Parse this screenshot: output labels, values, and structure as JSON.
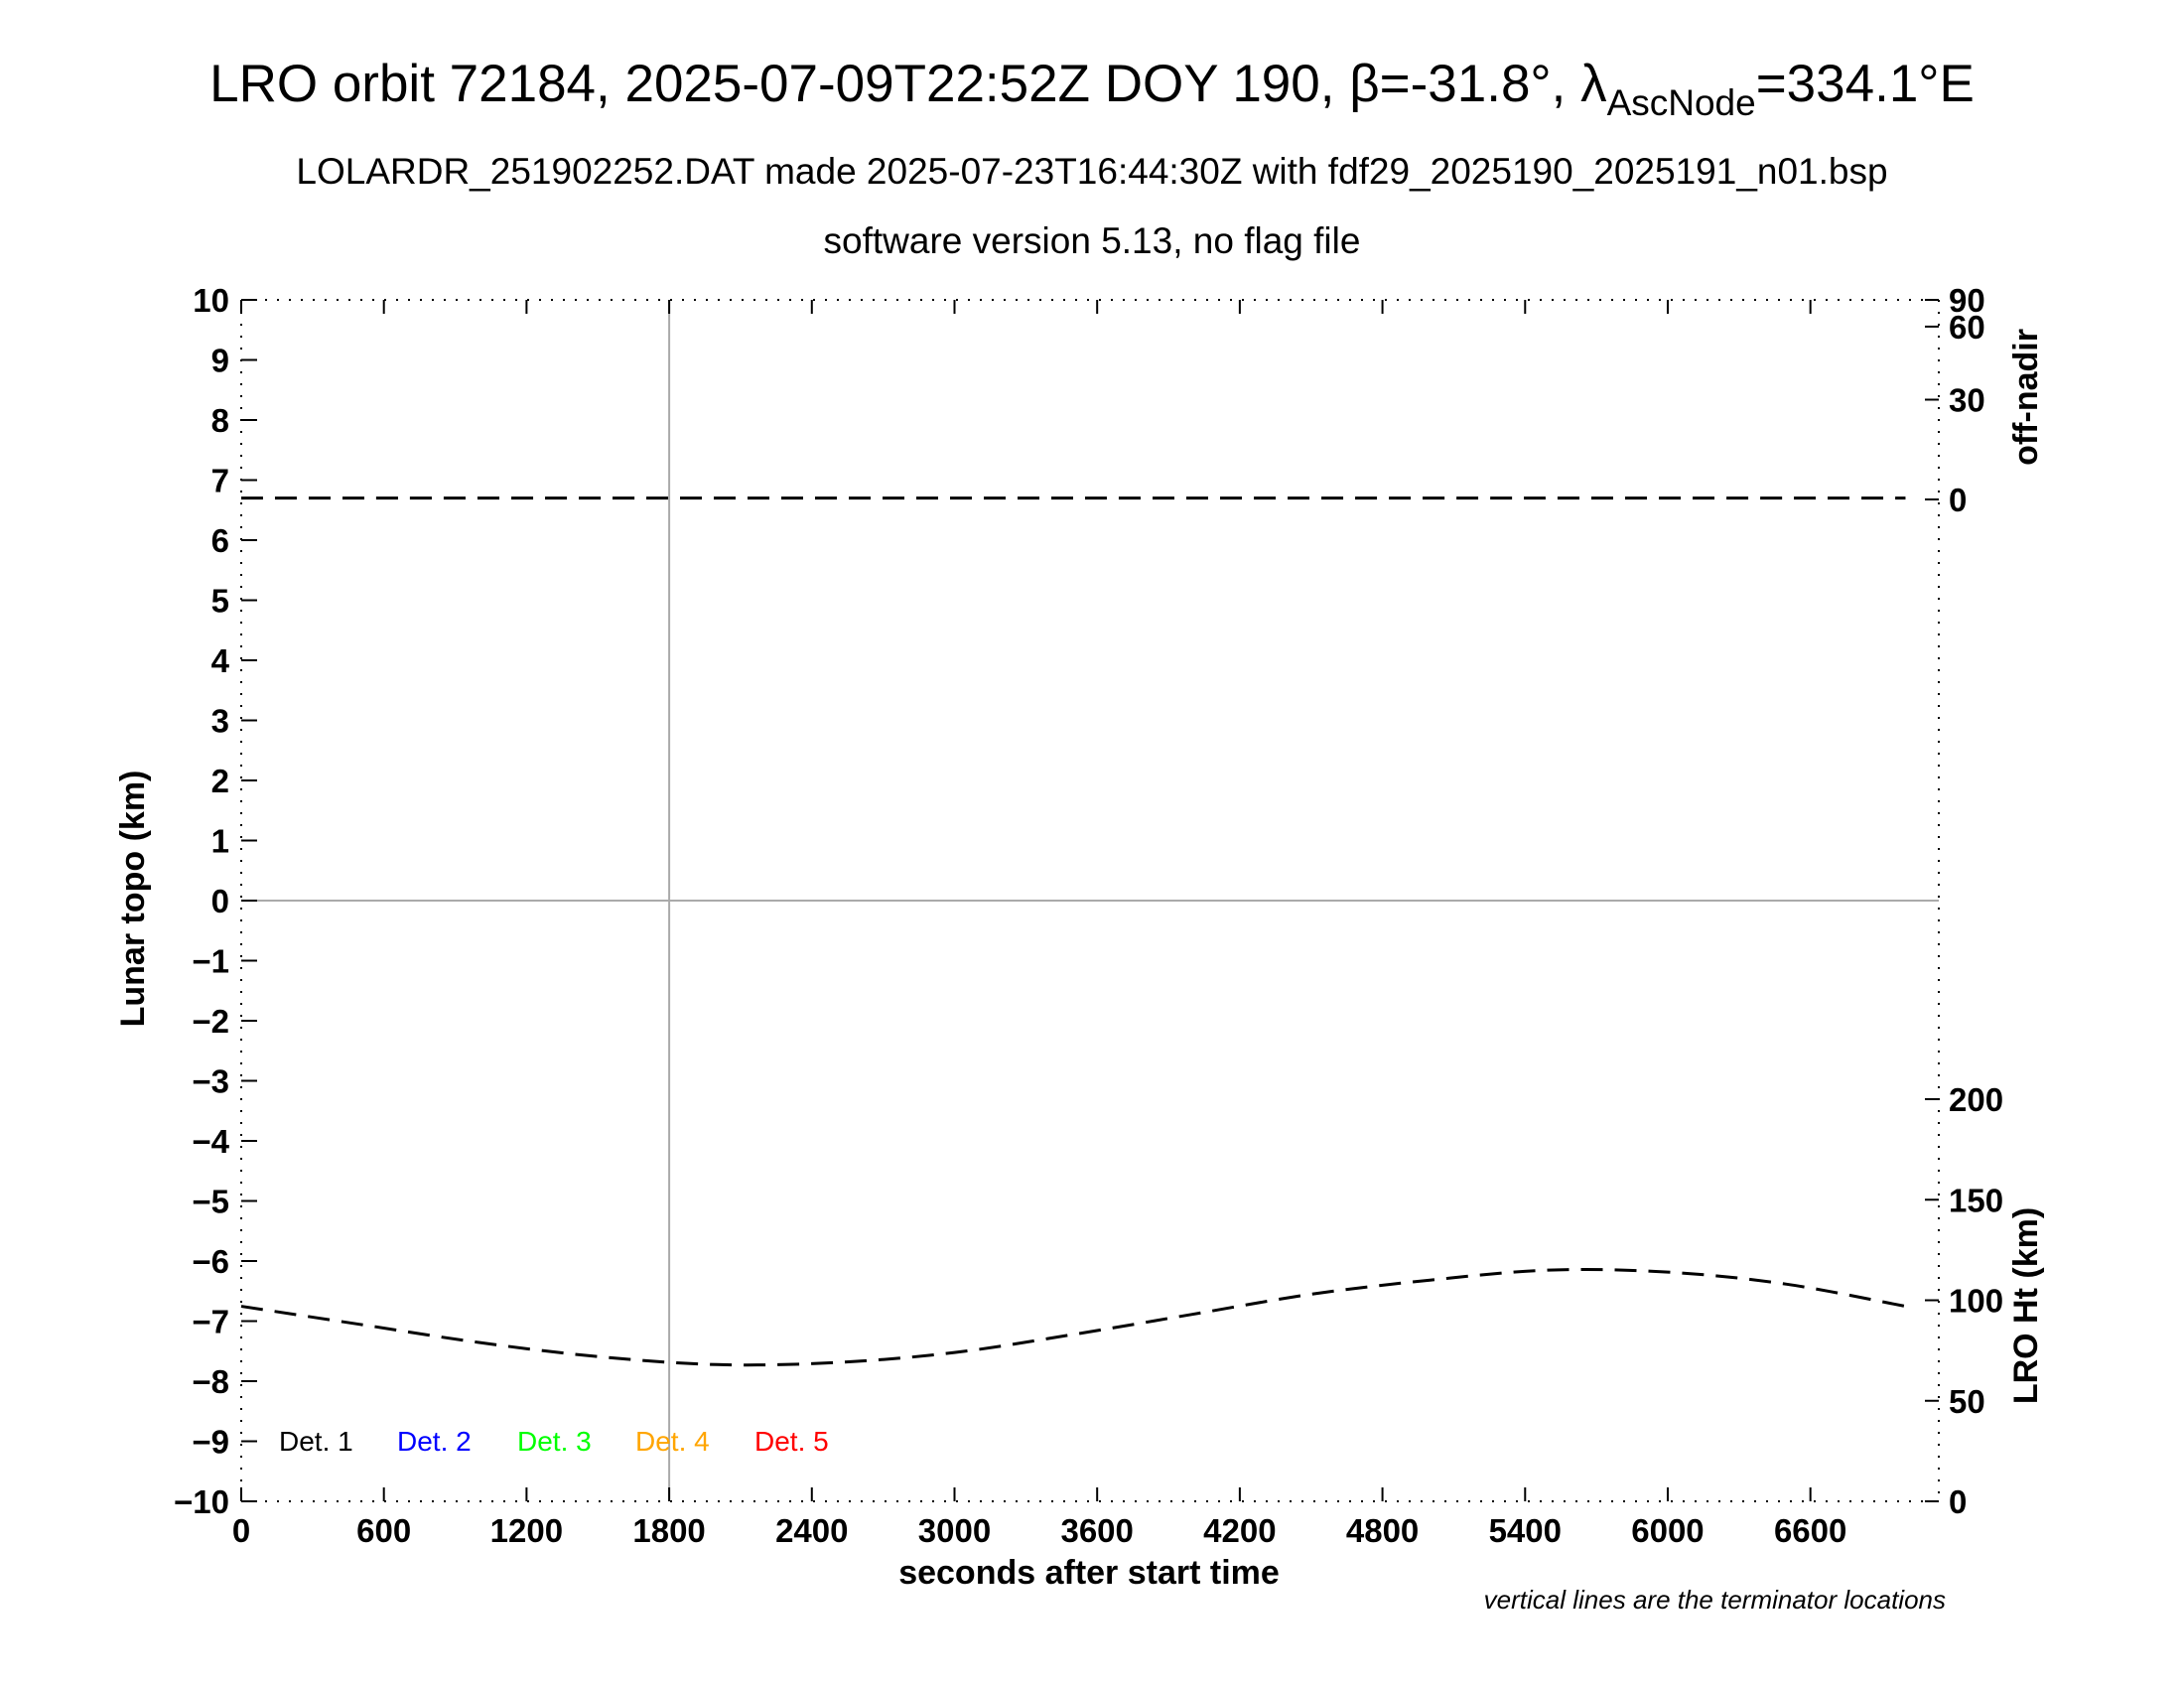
{
  "header": {
    "title_main": "LRO orbit 72184, 2025-07-09T22:52Z DOY 190, β=-31.8°, λ",
    "title_sub": "AscNode",
    "title_end": "=334.1°E",
    "subtitle1": "LOLARDR_251902252.DAT made 2025-07-23T16:44:30Z with fdf29_2025190_2025191_n01.bsp",
    "subtitle2": "software version 5.13, no flag file"
  },
  "note": "vertical lines are the terminator locations",
  "chart_data": {
    "type": "line",
    "xlabel": "seconds after start time",
    "ylabel_left": "Lunar topo (km)",
    "ylabel_right_top": "off-nadir",
    "ylabel_right_bottom": "LRO Ht (km)",
    "xlim": [
      0,
      7140
    ],
    "ylim_left": [
      -10,
      10
    ],
    "x_ticks": [
      0,
      600,
      1200,
      1800,
      2400,
      3000,
      3600,
      4200,
      4800,
      5400,
      6000,
      6600
    ],
    "y_ticks_left": [
      10,
      9,
      8,
      7,
      6,
      5,
      4,
      3,
      2,
      1,
      0,
      -1,
      -2,
      -3,
      -4,
      -5,
      -6,
      -7,
      -8,
      -9,
      -10
    ],
    "offnadir_ticks": [
      90,
      60,
      30,
      0
    ],
    "height_ticks": [
      200,
      150,
      100,
      50,
      0
    ],
    "terminator_x": [
      1800
    ],
    "legend": [
      {
        "label": "Det. 1",
        "color": "#000000"
      },
      {
        "label": "Det. 2",
        "color": "#0000ff"
      },
      {
        "label": "Det. 3",
        "color": "#00ff00"
      },
      {
        "label": "Det. 4",
        "color": "#ffa500"
      },
      {
        "label": "Det. 5",
        "color": "#ff0000"
      }
    ],
    "series": [
      {
        "axis": "off-nadir",
        "x": [
          0,
          1800,
          3600,
          5400,
          7000
        ],
        "values": [
          0.6,
          0.6,
          0.6,
          0.6,
          0.6
        ]
      },
      {
        "axis": "LRO Ht (km)",
        "x": [
          0,
          500,
          1000,
          1500,
          2000,
          2500,
          3000,
          3500,
          4000,
          4500,
          5000,
          5500,
          6000,
          6500,
          7000
        ],
        "values": [
          97,
          88,
          79,
          72,
          68,
          69,
          74,
          83,
          93,
          103,
          110,
          115,
          114,
          108,
          97
        ]
      }
    ]
  }
}
